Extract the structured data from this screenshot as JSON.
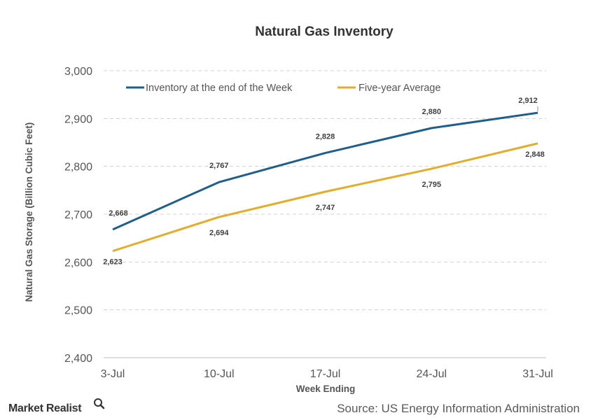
{
  "chart_data": {
    "type": "line",
    "title": "Natural Gas Inventory",
    "xlabel": "Week Ending",
    "ylabel": "Natural Gas Storage (Billion Cubic Feet)",
    "categories": [
      "3-Jul",
      "10-Jul",
      "17-Jul",
      "24-Jul",
      "31-Jul"
    ],
    "ylim": [
      2400,
      3000
    ],
    "yticks": [
      2400,
      2500,
      2600,
      2700,
      2800,
      2900,
      3000
    ],
    "ytick_labels": [
      "2,400",
      "2,500",
      "2,600",
      "2,700",
      "2,800",
      "2,900",
      "3,000"
    ],
    "grid": true,
    "legend_position": "top",
    "series": [
      {
        "name": "Inventory at the end of the Week",
        "color": "#1f5f8b",
        "values": [
          2668,
          2767,
          2828,
          2880,
          2912
        ],
        "labels": [
          "2,668",
          "2,767",
          "2,828",
          "2,880",
          "2,912"
        ]
      },
      {
        "name": "Five-year Average",
        "color": "#e3ac2a",
        "values": [
          2623,
          2694,
          2747,
          2795,
          2848
        ],
        "labels": [
          "2,623",
          "2,694",
          "2,747",
          "2,795",
          "2,848"
        ]
      }
    ]
  },
  "footer": {
    "source": "Source: US Energy Information Administration",
    "brand": "Market Realist",
    "brand_icon": "magnifier-icon"
  }
}
